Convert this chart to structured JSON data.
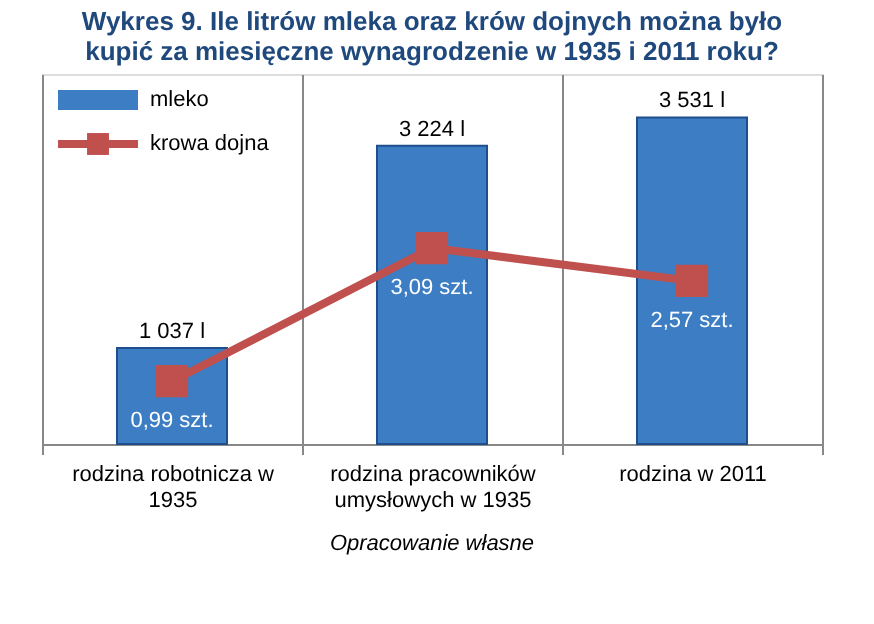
{
  "chart_data": {
    "type": "bar",
    "title": "Wykres 9. Ile litrów mleka oraz krów dojnych można było kupić za miesięczne wynagrodzenie w 1935 i 2011 roku?",
    "categories": [
      "rodzina robotnicza w 1935",
      "rodzina pracowników umysłowych w 1935",
      "rodzina w 2011"
    ],
    "series": [
      {
        "name": "mleko",
        "color": "#3c7dc4",
        "values": [
          1037,
          3224,
          3531
        ],
        "value_labels": [
          "1 037 l",
          "3 224 l",
          "3 531 l"
        ]
      },
      {
        "name": "krowa dojna",
        "type": "line",
        "axis": "y2",
        "color": "#c0504d",
        "values": [
          0.99,
          3.09,
          2.57
        ],
        "value_labels": [
          "0,99 szt.",
          "3,09 szt.",
          "2,57 szt."
        ]
      }
    ],
    "legend": "top left",
    "marker": "square",
    "line_style": "solid",
    "grid": "x",
    "annotations": [
      "Opracowanie własne"
    ]
  }
}
